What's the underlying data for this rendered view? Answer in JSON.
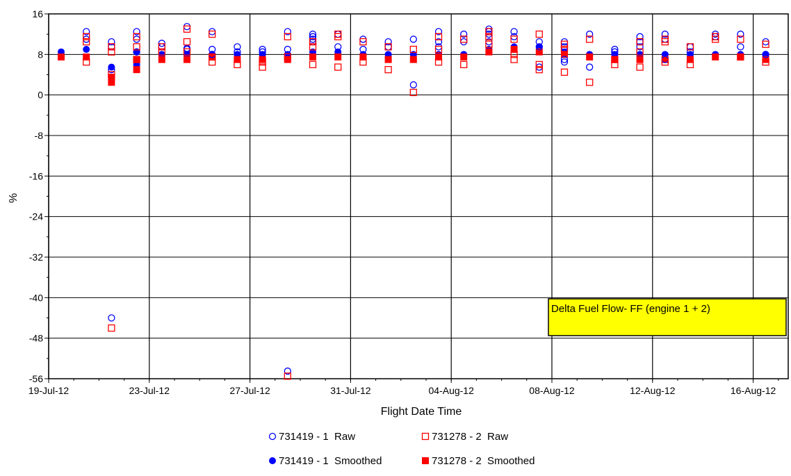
{
  "chart_data": {
    "type": "scatter",
    "title": "Delta Fuel Flow- FF (engine 1 + 2)",
    "xlabel": "Flight Date Time",
    "ylabel": "%",
    "x_ticks": [
      "19-Jul-12",
      "23-Jul-12",
      "27-Jul-12",
      "31-Jul-12",
      "04-Aug-12",
      "08-Aug-12",
      "12-Aug-12",
      "16-Aug-12"
    ],
    "x_range": [
      "2012-07-19",
      "2012-08-18"
    ],
    "y_ticks": [
      16,
      8,
      0,
      -8,
      -16,
      -24,
      -32,
      -40,
      -48,
      -56
    ],
    "ylim": [
      -56,
      16
    ],
    "grid": true,
    "legend_position": "bottom",
    "colors": {
      "series1": "#0000ff",
      "series2": "#ff0000",
      "title_box": "#ffff00"
    },
    "series": [
      {
        "name": "731419 - 1  Raw",
        "marker": "circle-open",
        "color": "#0000ff",
        "points": [
          [
            "2012-07-20",
            12.5
          ],
          [
            "2012-07-20",
            11.0
          ],
          [
            "2012-07-21",
            -44.0
          ],
          [
            "2012-07-21",
            5.0
          ],
          [
            "2012-07-21",
            9.5
          ],
          [
            "2012-07-21",
            10.5
          ],
          [
            "2012-07-22",
            12.5
          ],
          [
            "2012-07-22",
            11.0
          ],
          [
            "2012-07-22",
            8.5
          ],
          [
            "2012-07-23",
            10.2
          ],
          [
            "2012-07-23",
            9.5
          ],
          [
            "2012-07-24",
            13.5
          ],
          [
            "2012-07-24",
            9.2
          ],
          [
            "2012-07-24",
            9.0
          ],
          [
            "2012-07-25",
            12.5
          ],
          [
            "2012-07-25",
            9.0
          ],
          [
            "2012-07-25",
            8.0
          ],
          [
            "2012-07-26",
            9.5
          ],
          [
            "2012-07-26",
            8.5
          ],
          [
            "2012-07-27",
            9.0
          ],
          [
            "2012-07-27",
            8.5
          ],
          [
            "2012-07-28",
            -54.5
          ],
          [
            "2012-07-28",
            12.5
          ],
          [
            "2012-07-28",
            9.0
          ],
          [
            "2012-07-29",
            10.5
          ],
          [
            "2012-07-29",
            11.0
          ],
          [
            "2012-07-29",
            11.5
          ],
          [
            "2012-07-29",
            12.0
          ],
          [
            "2012-07-30",
            9.5
          ],
          [
            "2012-07-30",
            12.0
          ],
          [
            "2012-07-31",
            11.0
          ],
          [
            "2012-07-31",
            9.0
          ],
          [
            "2012-08-01",
            10.5
          ],
          [
            "2012-08-01",
            9.5
          ],
          [
            "2012-08-02",
            2.0
          ],
          [
            "2012-08-02",
            11.0
          ],
          [
            "2012-08-03",
            9.5
          ],
          [
            "2012-08-03",
            10.5
          ],
          [
            "2012-08-03",
            12.5
          ],
          [
            "2012-08-04",
            10.5
          ],
          [
            "2012-08-04",
            12.0
          ],
          [
            "2012-08-05",
            13.0
          ],
          [
            "2012-08-05",
            10.5
          ],
          [
            "2012-08-05",
            12.5
          ],
          [
            "2012-08-05",
            12.0
          ],
          [
            "2012-08-06",
            11.5
          ],
          [
            "2012-08-06",
            12.5
          ],
          [
            "2012-08-07",
            10.5
          ],
          [
            "2012-08-07",
            9.5
          ],
          [
            "2012-08-07",
            5.5
          ],
          [
            "2012-08-08",
            10.5
          ],
          [
            "2012-08-08",
            9.5
          ],
          [
            "2012-08-08",
            7.0
          ],
          [
            "2012-08-08",
            6.5
          ],
          [
            "2012-08-09",
            12.0
          ],
          [
            "2012-08-09",
            5.5
          ],
          [
            "2012-08-10",
            8.5
          ],
          [
            "2012-08-10",
            9.0
          ],
          [
            "2012-08-11",
            9.5
          ],
          [
            "2012-08-11",
            10.5
          ],
          [
            "2012-08-11",
            11.5
          ],
          [
            "2012-08-12",
            12.0
          ],
          [
            "2012-08-12",
            11.0
          ],
          [
            "2012-08-12",
            7.0
          ],
          [
            "2012-08-13",
            9.5
          ],
          [
            "2012-08-13",
            8.5
          ],
          [
            "2012-08-14",
            12.0
          ],
          [
            "2012-08-14",
            11.5
          ],
          [
            "2012-08-15",
            9.5
          ],
          [
            "2012-08-15",
            12.0
          ],
          [
            "2012-08-16",
            10.5
          ],
          [
            "2012-08-16",
            8.0
          ],
          [
            "2012-08-17",
            11.0
          ],
          [
            "2012-08-17",
            10.0
          ],
          [
            "2012-08-18",
            12.5
          ],
          [
            "2012-08-18",
            9.5
          ]
        ]
      },
      {
        "name": "731278 - 2  Raw",
        "marker": "square-open",
        "color": "#ff0000",
        "points": [
          [
            "2012-07-20",
            11.5
          ],
          [
            "2012-07-20",
            10.5
          ],
          [
            "2012-07-20",
            6.5
          ],
          [
            "2012-07-21",
            -46.0
          ],
          [
            "2012-07-21",
            4.0
          ],
          [
            "2012-07-21",
            8.5
          ],
          [
            "2012-07-21",
            9.5
          ],
          [
            "2012-07-22",
            11.5
          ],
          [
            "2012-07-22",
            9.5
          ],
          [
            "2012-07-22",
            7.0
          ],
          [
            "2012-07-23",
            9.5
          ],
          [
            "2012-07-23",
            8.5
          ],
          [
            "2012-07-24",
            13.0
          ],
          [
            "2012-07-24",
            10.5
          ],
          [
            "2012-07-24",
            8.5
          ],
          [
            "2012-07-25",
            12.0
          ],
          [
            "2012-07-25",
            7.5
          ],
          [
            "2012-07-25",
            6.5
          ],
          [
            "2012-07-26",
            6.0
          ],
          [
            "2012-07-27",
            5.5
          ],
          [
            "2012-07-27",
            6.5
          ],
          [
            "2012-07-28",
            -55.5
          ],
          [
            "2012-07-28",
            11.5
          ],
          [
            "2012-07-28",
            7.5
          ],
          [
            "2012-07-29",
            9.5
          ],
          [
            "2012-07-29",
            6.0
          ],
          [
            "2012-07-29",
            10.5
          ],
          [
            "2012-07-30",
            12.0
          ],
          [
            "2012-07-30",
            5.5
          ],
          [
            "2012-07-30",
            11.5
          ],
          [
            "2012-07-31",
            10.5
          ],
          [
            "2012-07-31",
            6.5
          ],
          [
            "2012-08-01",
            5.0
          ],
          [
            "2012-08-01",
            9.5
          ],
          [
            "2012-08-02",
            0.5
          ],
          [
            "2012-08-02",
            9.0
          ],
          [
            "2012-08-03",
            9.0
          ],
          [
            "2012-08-03",
            11.5
          ],
          [
            "2012-08-03",
            6.5
          ],
          [
            "2012-08-04",
            11.0
          ],
          [
            "2012-08-04",
            6.0
          ],
          [
            "2012-08-05",
            12.5
          ],
          [
            "2012-08-05",
            10.0
          ],
          [
            "2012-08-05",
            11.5
          ],
          [
            "2012-08-06",
            11.0
          ],
          [
            "2012-08-06",
            8.0
          ],
          [
            "2012-08-06",
            7.0
          ],
          [
            "2012-08-07",
            12.0
          ],
          [
            "2012-08-07",
            5.0
          ],
          [
            "2012-08-07",
            6.0
          ],
          [
            "2012-08-08",
            10.0
          ],
          [
            "2012-08-08",
            9.0
          ],
          [
            "2012-08-08",
            4.5
          ],
          [
            "2012-08-09",
            11.0
          ],
          [
            "2012-08-09",
            2.5
          ],
          [
            "2012-08-10",
            7.0
          ],
          [
            "2012-08-10",
            6.0
          ],
          [
            "2012-08-11",
            8.5
          ],
          [
            "2012-08-11",
            5.5
          ],
          [
            "2012-08-11",
            10.5
          ],
          [
            "2012-08-12",
            11.0
          ],
          [
            "2012-08-12",
            10.5
          ],
          [
            "2012-08-12",
            6.5
          ],
          [
            "2012-08-13",
            9.5
          ],
          [
            "2012-08-13",
            6.0
          ],
          [
            "2012-08-14",
            11.0
          ],
          [
            "2012-08-14",
            11.5
          ],
          [
            "2012-08-15",
            7.5
          ],
          [
            "2012-08-15",
            11.0
          ],
          [
            "2012-08-16",
            10.0
          ],
          [
            "2012-08-16",
            6.5
          ],
          [
            "2012-08-17",
            11.0
          ],
          [
            "2012-08-17",
            8.5
          ],
          [
            "2012-08-18",
            11.5
          ],
          [
            "2012-08-18",
            9.0
          ]
        ]
      },
      {
        "name": "731419 - 1  Smoothed",
        "marker": "circle-filled",
        "color": "#0000ff",
        "points": [
          [
            "2012-07-19",
            8.5
          ],
          [
            "2012-07-20",
            9.0
          ],
          [
            "2012-07-21",
            5.5
          ],
          [
            "2012-07-22",
            6.0
          ],
          [
            "2012-07-22",
            8.5
          ],
          [
            "2012-07-23",
            8.0
          ],
          [
            "2012-07-24",
            8.0
          ],
          [
            "2012-07-25",
            8.0
          ],
          [
            "2012-07-26",
            8.0
          ],
          [
            "2012-07-27",
            8.0
          ],
          [
            "2012-07-28",
            8.0
          ],
          [
            "2012-07-29",
            8.5
          ],
          [
            "2012-07-30",
            8.5
          ],
          [
            "2012-07-31",
            8.0
          ],
          [
            "2012-08-01",
            8.0
          ],
          [
            "2012-08-02",
            8.0
          ],
          [
            "2012-08-03",
            8.0
          ],
          [
            "2012-08-04",
            8.0
          ],
          [
            "2012-08-05",
            9.0
          ],
          [
            "2012-08-06",
            9.5
          ],
          [
            "2012-08-07",
            9.5
          ],
          [
            "2012-08-08",
            8.5
          ],
          [
            "2012-08-09",
            8.0
          ],
          [
            "2012-08-10",
            8.0
          ],
          [
            "2012-08-11",
            8.0
          ],
          [
            "2012-08-12",
            8.0
          ],
          [
            "2012-08-13",
            8.0
          ],
          [
            "2012-08-14",
            8.0
          ],
          [
            "2012-08-15",
            8.0
          ],
          [
            "2012-08-16",
            8.0
          ],
          [
            "2012-08-17",
            8.0
          ],
          [
            "2012-08-18",
            8.0
          ]
        ]
      },
      {
        "name": "731278 - 2  Smoothed",
        "marker": "square-filled",
        "color": "#ff0000",
        "points": [
          [
            "2012-07-19",
            7.5
          ],
          [
            "2012-07-20",
            7.5
          ],
          [
            "2012-07-21",
            2.5
          ],
          [
            "2012-07-21",
            3.5
          ],
          [
            "2012-07-22",
            5.0
          ],
          [
            "2012-07-22",
            7.0
          ],
          [
            "2012-07-23",
            7.0
          ],
          [
            "2012-07-24",
            7.0
          ],
          [
            "2012-07-25",
            7.5
          ],
          [
            "2012-07-26",
            7.0
          ],
          [
            "2012-07-27",
            7.0
          ],
          [
            "2012-07-28",
            7.0
          ],
          [
            "2012-07-29",
            7.5
          ],
          [
            "2012-07-30",
            7.5
          ],
          [
            "2012-07-31",
            7.5
          ],
          [
            "2012-08-01",
            7.0
          ],
          [
            "2012-08-02",
            7.0
          ],
          [
            "2012-08-03",
            7.5
          ],
          [
            "2012-08-04",
            7.5
          ],
          [
            "2012-08-05",
            8.5
          ],
          [
            "2012-08-06",
            9.0
          ],
          [
            "2012-08-07",
            8.5
          ],
          [
            "2012-08-08",
            8.0
          ],
          [
            "2012-08-09",
            7.5
          ],
          [
            "2012-08-10",
            7.0
          ],
          [
            "2012-08-11",
            7.0
          ],
          [
            "2012-08-12",
            7.0
          ],
          [
            "2012-08-13",
            7.0
          ],
          [
            "2012-08-14",
            7.5
          ],
          [
            "2012-08-15",
            7.5
          ],
          [
            "2012-08-16",
            7.0
          ],
          [
            "2012-08-17",
            7.0
          ],
          [
            "2012-08-18",
            7.0
          ]
        ]
      }
    ]
  }
}
